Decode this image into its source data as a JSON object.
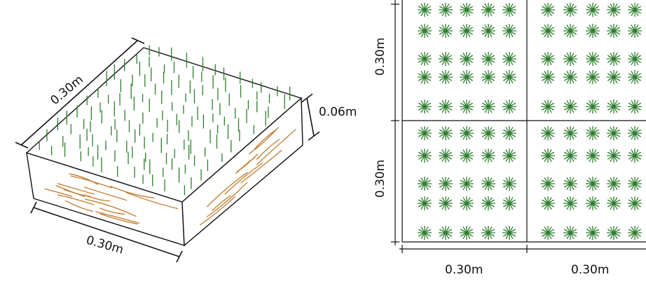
{
  "iso_block": {
    "top_dimension": "0.30m",
    "front_dimension": "0.30m",
    "height_dimension": "0.06m"
  },
  "plan_view": {
    "left_upper_dimension": "0.30m",
    "left_lower_dimension": "0.30m",
    "bottom_left_dimension": "0.30m",
    "bottom_right_dimension": "0.30m",
    "plant_rows_per_quadrant": 5,
    "plant_cols_per_quadrant": 5
  },
  "colors": {
    "grass": "#2f7d2f",
    "soil": "#c07a2c",
    "line": "#111111"
  }
}
